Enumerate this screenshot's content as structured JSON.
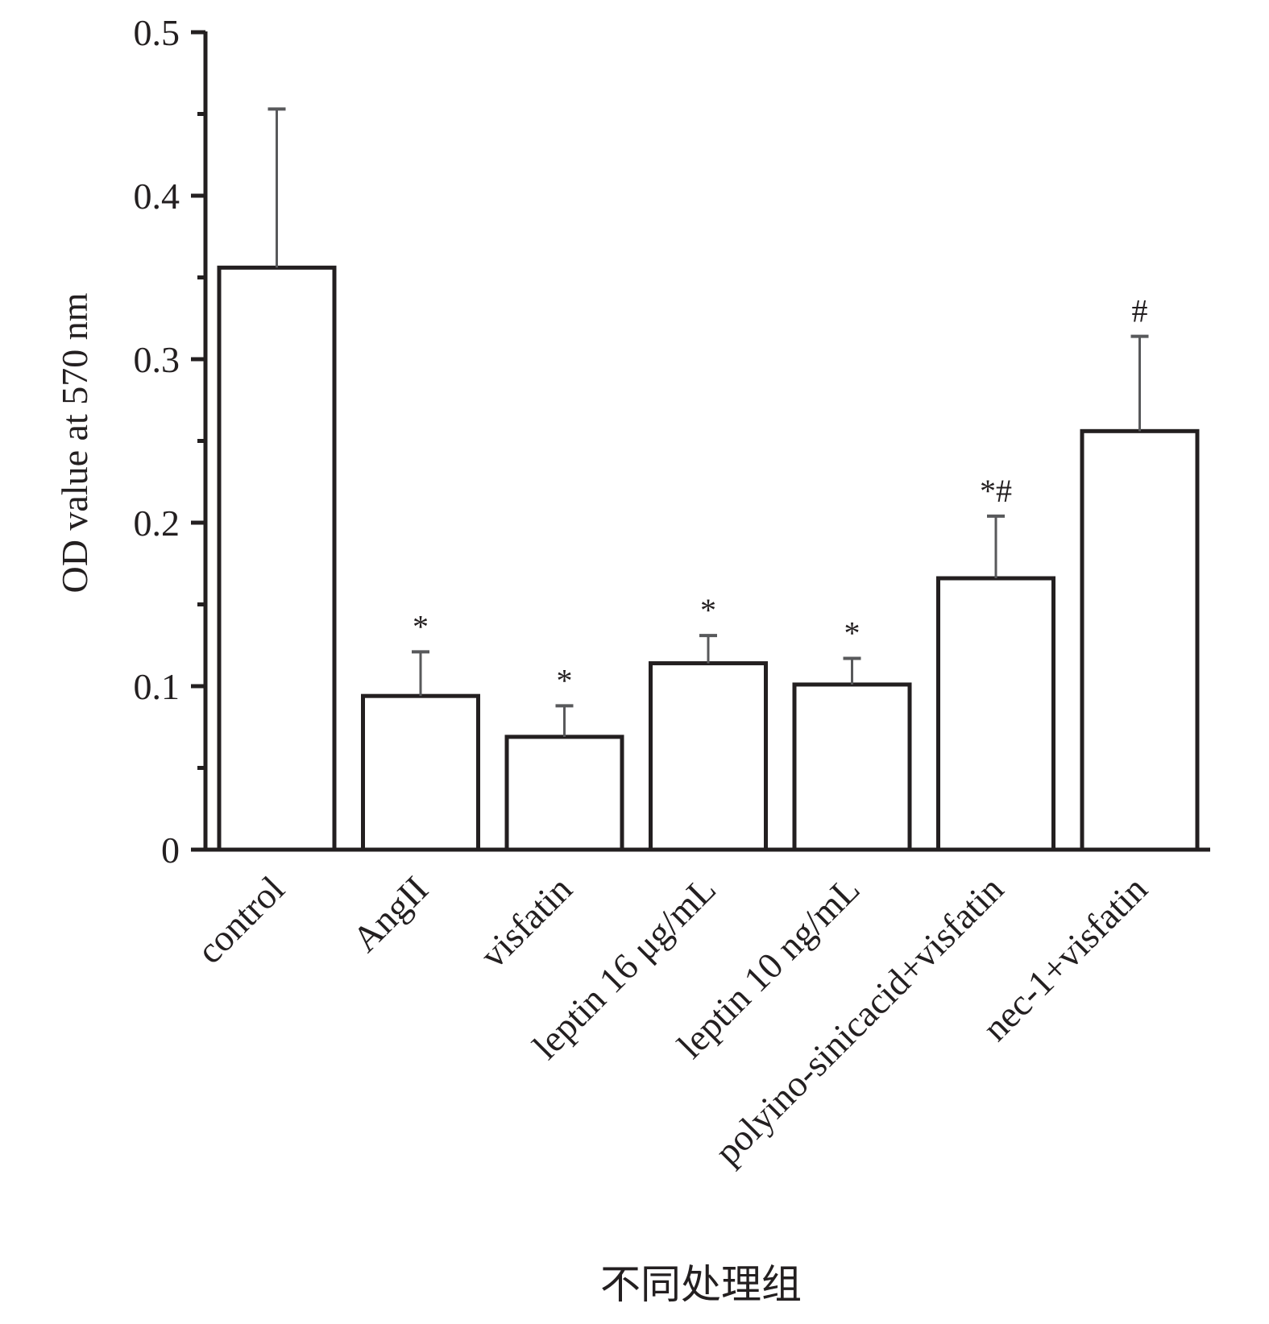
{
  "chart_data": {
    "type": "bar",
    "categories": [
      "control",
      "AngII",
      "visfatin",
      "leptin 16 μg/mL",
      "leptin 10 ng/mL",
      "polyino-sinicacid+visfatin",
      "nec-1+visfatin"
    ],
    "values": [
      0.356,
      0.094,
      0.069,
      0.114,
      0.101,
      0.166,
      0.256
    ],
    "errors": [
      0.097,
      0.027,
      0.019,
      0.017,
      0.016,
      0.038,
      0.058
    ],
    "significance": [
      "",
      "*",
      "*",
      "*",
      "*",
      "*#",
      "#"
    ],
    "title": "",
    "xlabel": "不同处理组",
    "ylabel": "OD value at 570 nm",
    "ylim": [
      0,
      0.5
    ],
    "yticks": [
      0,
      0.1,
      0.2,
      0.3,
      0.4,
      0.5
    ],
    "ytick_labels": [
      "0",
      "0.1",
      "0.2",
      "0.3",
      "0.4",
      "0.5"
    ],
    "grid": false,
    "legend": "none",
    "colors": {
      "bar_fill": "#ffffff",
      "bar_stroke": "#231f20",
      "axis": "#231f20",
      "error_bar": "#58595b"
    }
  }
}
